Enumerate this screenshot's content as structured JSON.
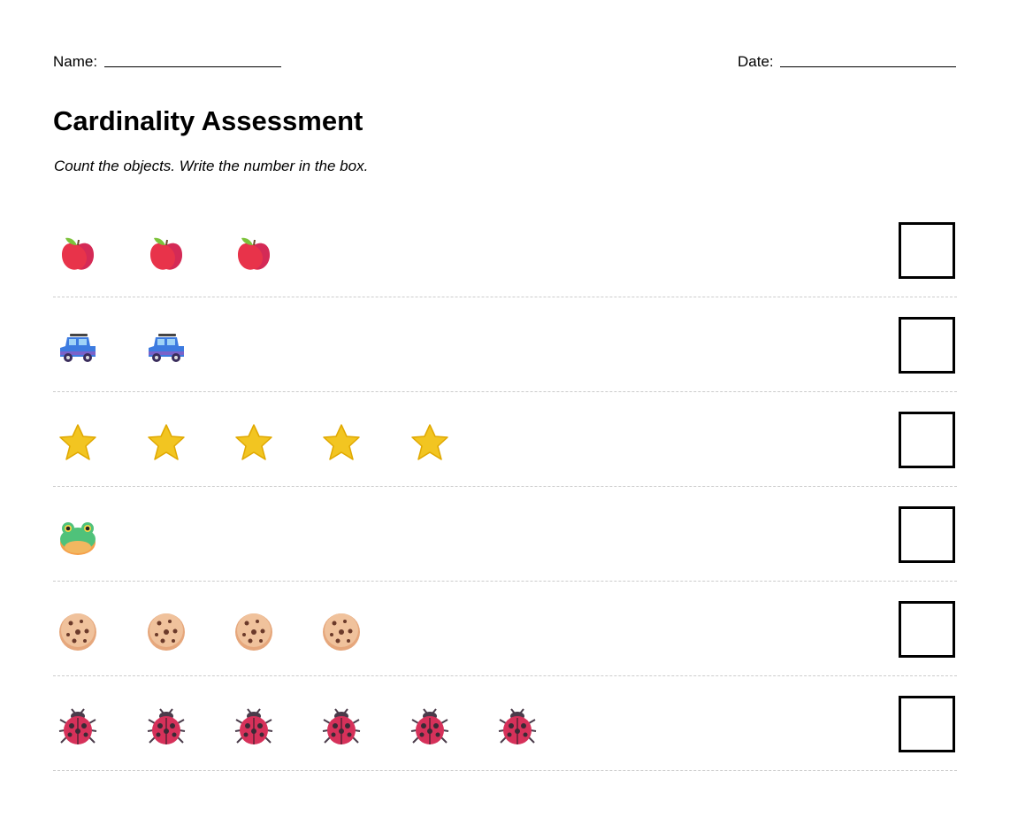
{
  "header": {
    "name_label": "Name:",
    "date_label": "Date:"
  },
  "title": "Cardinality Assessment",
  "instructions": "Count the objects. Write the number in the box."
}
